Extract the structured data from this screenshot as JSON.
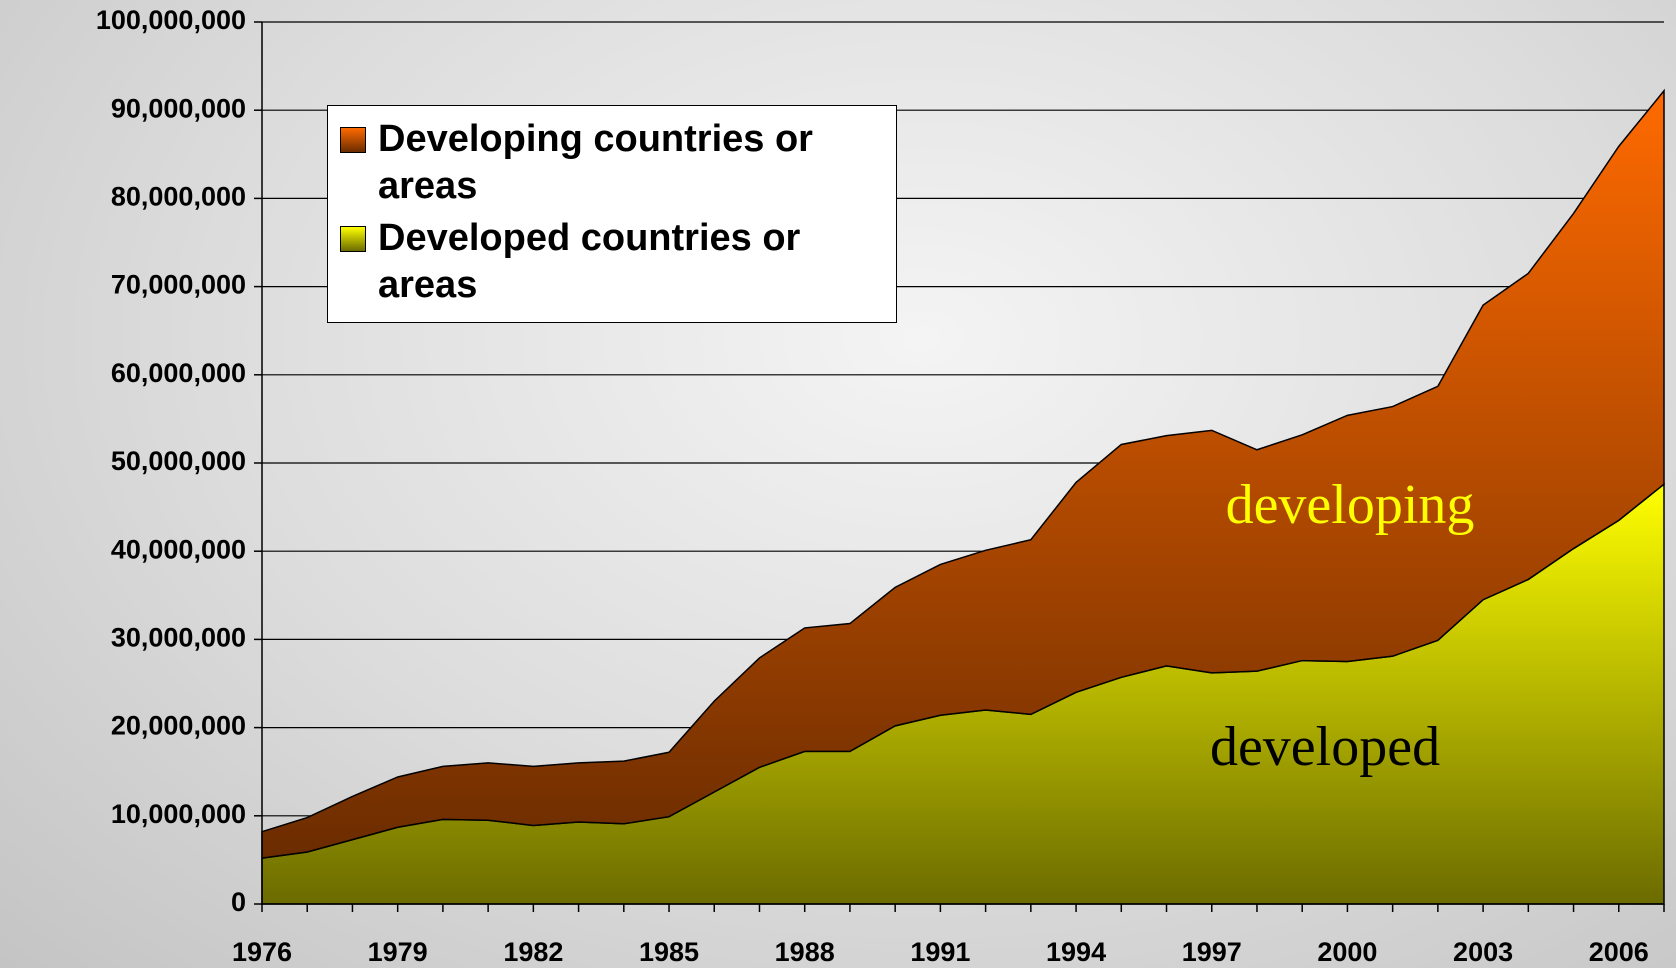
{
  "chart_data": {
    "type": "stacked-area",
    "x": [
      1976,
      1977,
      1978,
      1979,
      1980,
      1981,
      1982,
      1983,
      1984,
      1985,
      1986,
      1987,
      1988,
      1989,
      1990,
      1991,
      1992,
      1993,
      1994,
      1995,
      1996,
      1997,
      1998,
      1999,
      2000,
      2001,
      2002,
      2003,
      2004,
      2005,
      2006,
      2007
    ],
    "series": [
      {
        "name": "Developing countries or areas",
        "color": "#ff6a00",
        "values": [
          3000000,
          3900000,
          4900000,
          5700000,
          6000000,
          6500000,
          6700000,
          6700000,
          7100000,
          7300000,
          10300000,
          12400000,
          14000000,
          14500000,
          15700000,
          17100000,
          18100000,
          19800000,
          23800000,
          26400000,
          26100000,
          27500000,
          25100000,
          25600000,
          27900000,
          28300000,
          28800000,
          33400000,
          34700000,
          38000000,
          42400000,
          44600000
        ]
      },
      {
        "name": "Developed countries or areas",
        "color": "#ffff00",
        "values": [
          5200000,
          5900000,
          7300000,
          8700000,
          9600000,
          9500000,
          8900000,
          9300000,
          9100000,
          9900000,
          12700000,
          15500000,
          17300000,
          17300000,
          20200000,
          21400000,
          22000000,
          21500000,
          24000000,
          25700000,
          27000000,
          26200000,
          26400000,
          27600000,
          27500000,
          28100000,
          29900000,
          34500000,
          36800000,
          40300000,
          43500000,
          47600000
        ]
      }
    ],
    "xlim": [
      1976,
      2007
    ],
    "xticks": [
      1976,
      1979,
      1982,
      1985,
      1988,
      1991,
      1994,
      1997,
      2000,
      2003,
      2006
    ],
    "ylim": [
      0,
      100000000
    ],
    "yticks": [
      0,
      {
        "value": 10000000,
        "label": "10,000,000"
      },
      {
        "value": 20000000,
        "label": "20,000,000"
      },
      {
        "value": 30000000,
        "label": "30,000,000"
      },
      {
        "value": 40000000,
        "label": "40,000,000"
      },
      {
        "value": 50000000,
        "label": "50,000,000"
      },
      {
        "value": 60000000,
        "label": "60,000,000"
      },
      {
        "value": 70000000,
        "label": "70,000,000"
      },
      {
        "value": 80000000,
        "label": "80,000,000"
      },
      {
        "value": 90000000,
        "label": "90,000,000"
      },
      {
        "value": 100000000,
        "label": "100,000,000"
      }
    ],
    "grid": true,
    "legend": "upper-left",
    "annotations": [
      {
        "text": "developing",
        "color": "#ffff00"
      },
      {
        "text": "developed",
        "color": "#000000"
      }
    ]
  }
}
